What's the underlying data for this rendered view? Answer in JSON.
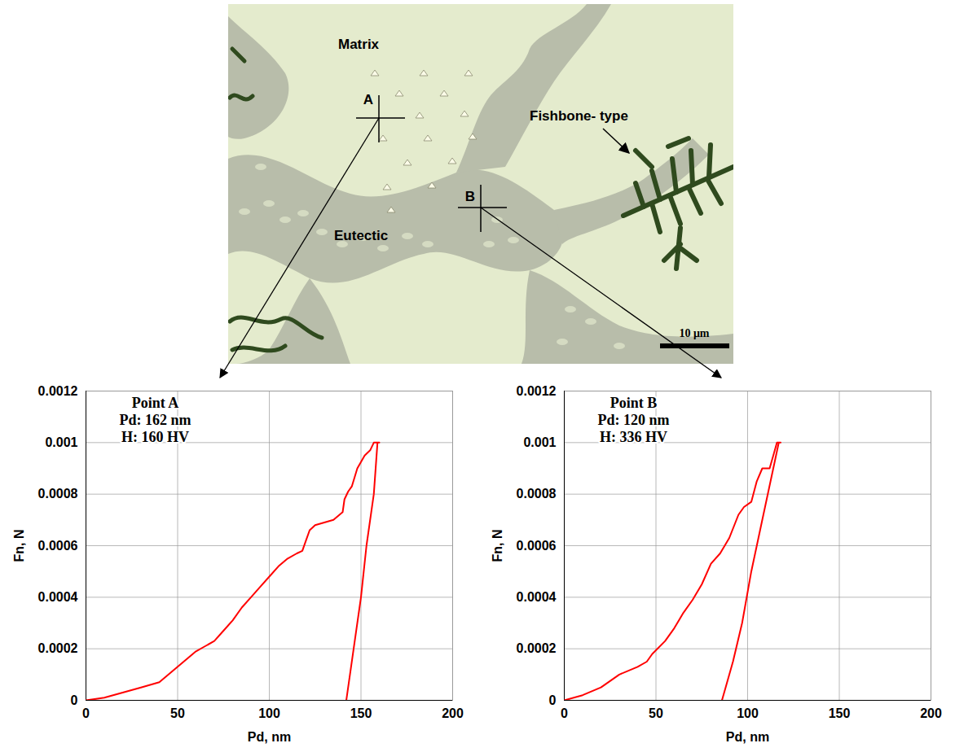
{
  "image": {
    "labels": {
      "matrix": "Matrix",
      "eutectic": "Eutectic",
      "fishbone": "Fishbone- type",
      "point_a": "A",
      "point_b": "B"
    },
    "scale_bar": "10 μm"
  },
  "chart_data": [
    {
      "type": "line",
      "annotation": [
        "Point A",
        "Pd: 162 nm",
        "H: 160 HV"
      ],
      "x_label": "Pd, nm",
      "y_label": "Fn, N",
      "color": "#ff0000",
      "grid": true,
      "xlim": [
        0,
        200
      ],
      "xticks": [
        0,
        50,
        100,
        150,
        200
      ],
      "ylim": [
        0,
        0.0012
      ],
      "yticks": [
        0,
        0.0002,
        0.0004,
        0.0006,
        0.0008,
        0.001,
        0.0012
      ],
      "x": [
        0,
        10,
        20,
        30,
        40,
        45,
        50,
        55,
        60,
        65,
        70,
        75,
        80,
        85,
        90,
        95,
        100,
        105,
        110,
        115,
        118,
        120,
        122,
        125,
        130,
        135,
        140,
        141,
        143,
        145,
        148,
        152,
        155,
        157,
        160,
        159,
        157,
        153,
        150,
        146,
        142
      ],
      "values": [
        0,
        1e-05,
        3e-05,
        5e-05,
        7e-05,
        0.0001,
        0.00013,
        0.00016,
        0.00019,
        0.00021,
        0.00023,
        0.00027,
        0.00031,
        0.00036,
        0.0004,
        0.00044,
        0.00048,
        0.00052,
        0.00055,
        0.00057,
        0.00058,
        0.00062,
        0.00066,
        0.00068,
        0.00069,
        0.0007,
        0.00073,
        0.00078,
        0.00081,
        0.00083,
        0.0009,
        0.00095,
        0.00097,
        0.001,
        0.001,
        0.001,
        0.0008,
        0.0006,
        0.0004,
        0.0002,
        0
      ]
    },
    {
      "type": "line",
      "annotation": [
        "Point B",
        "Pd: 120 nm",
        "H: 336 HV"
      ],
      "x_label": "Pd, nm",
      "y_label": "Fn, N",
      "color": "#ff0000",
      "grid": true,
      "xlim": [
        0,
        200
      ],
      "xticks": [
        0,
        50,
        100,
        150,
        200
      ],
      "ylim": [
        0,
        0.0012
      ],
      "yticks": [
        0,
        0.0002,
        0.0004,
        0.0006,
        0.0008,
        0.001,
        0.0012
      ],
      "x": [
        0,
        10,
        20,
        30,
        40,
        45,
        48,
        55,
        60,
        65,
        70,
        75,
        80,
        85,
        90,
        95,
        98,
        102,
        105,
        108,
        112,
        114,
        116,
        118,
        117,
        114,
        108,
        102,
        97,
        92,
        88,
        86
      ],
      "values": [
        0,
        2e-05,
        5e-05,
        0.0001,
        0.00013,
        0.00015,
        0.00018,
        0.00023,
        0.00028,
        0.00034,
        0.00039,
        0.00045,
        0.00053,
        0.00057,
        0.00063,
        0.00072,
        0.00075,
        0.00077,
        0.00085,
        0.0009,
        0.0009,
        0.00095,
        0.001,
        0.001,
        0.001,
        0.0009,
        0.0007,
        0.0005,
        0.0003,
        0.00015,
        5e-05,
        0
      ]
    }
  ]
}
